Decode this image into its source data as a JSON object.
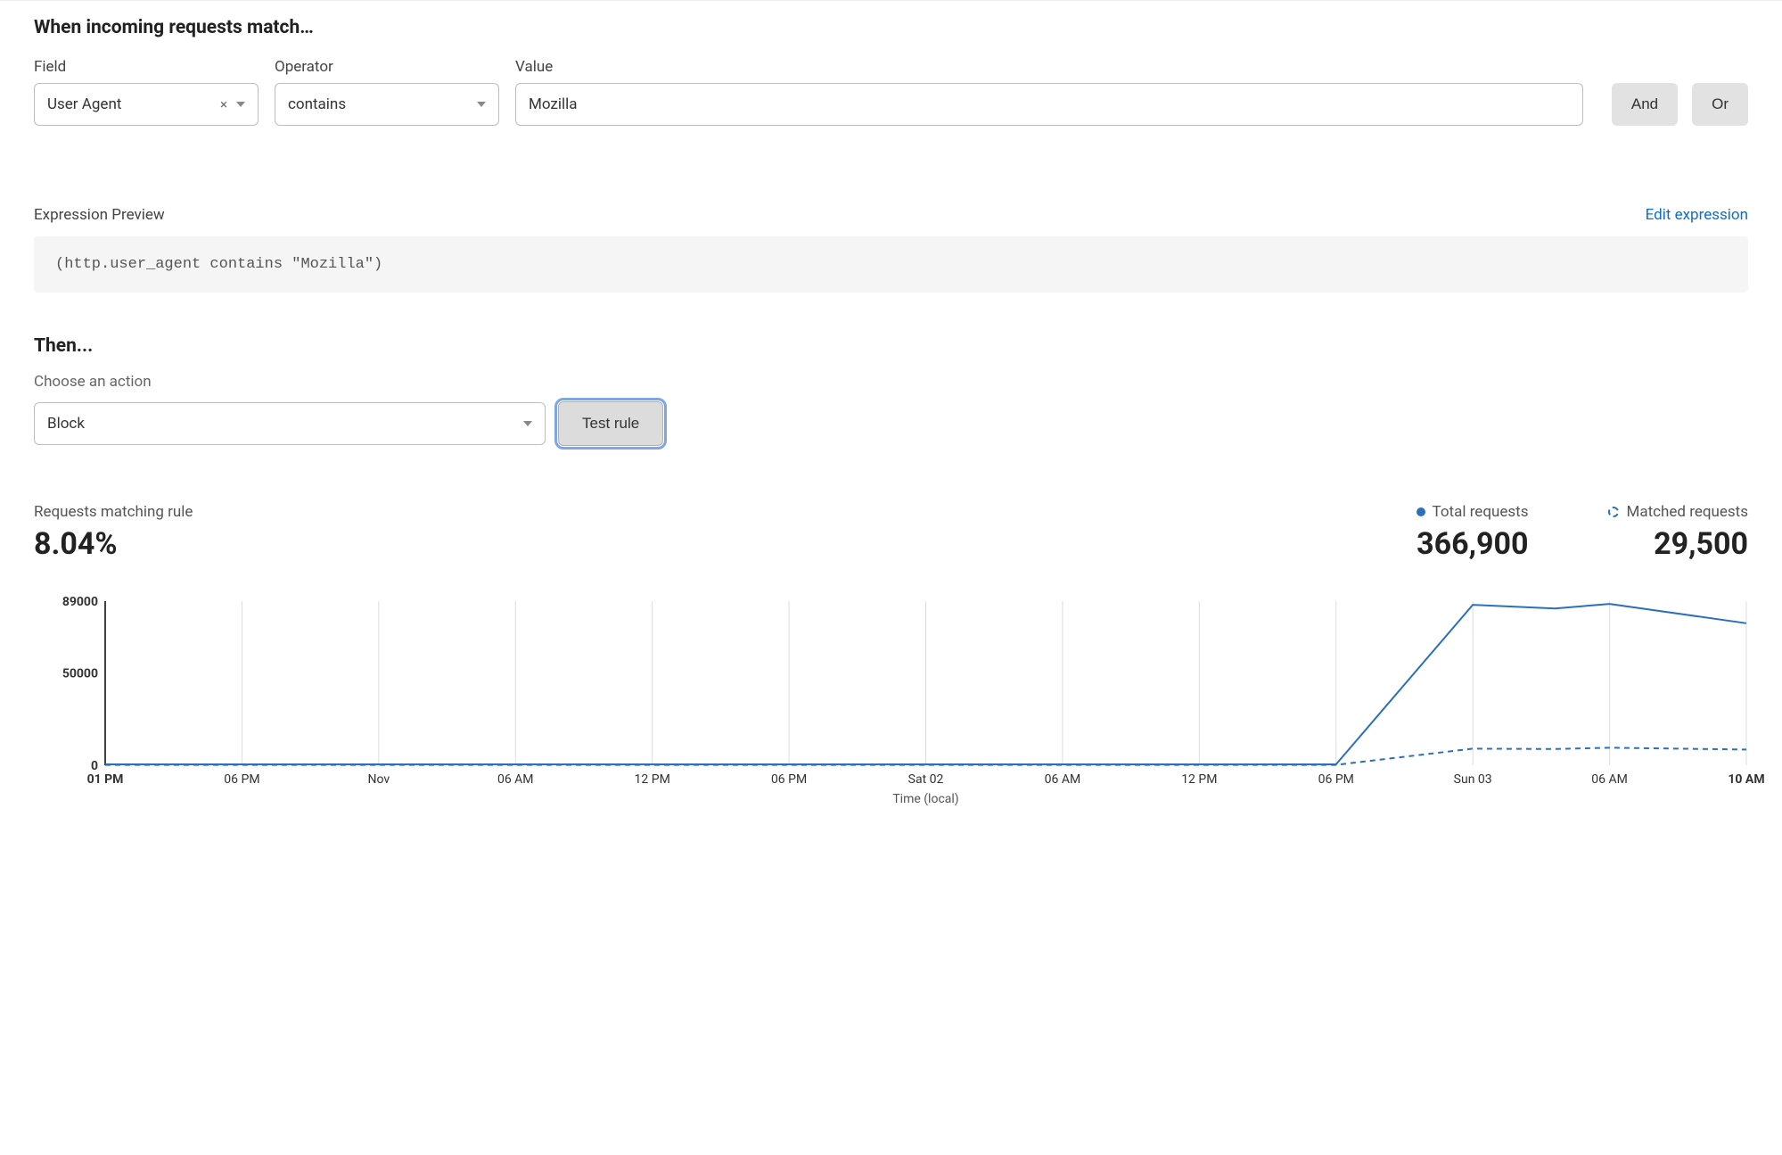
{
  "match_section": {
    "title": "When incoming requests match…",
    "field_label": "Field",
    "operator_label": "Operator",
    "value_label": "Value",
    "field_value": "User Agent",
    "operator_value": "contains",
    "value_value": "Mozilla",
    "and_label": "And",
    "or_label": "Or"
  },
  "preview": {
    "title": "Expression Preview",
    "edit_label": "Edit expression",
    "expression": "(http.user_agent contains \"Mozilla\")"
  },
  "then": {
    "title": "Then...",
    "action_label": "Choose an action",
    "action_value": "Block",
    "test_label": "Test rule"
  },
  "stats": {
    "matching_label": "Requests matching rule",
    "matching_value": "8.04%",
    "total_label": "Total requests",
    "total_value": "366,900",
    "matched_label": "Matched requests",
    "matched_value": "29,500"
  },
  "chart": {
    "type": "line",
    "xlabel": "Time (local)",
    "ylim": [
      0,
      89000
    ],
    "yticks": [
      0,
      50000,
      89000
    ],
    "ytick_labels": [
      "0",
      "50000",
      "89000"
    ],
    "x_categories": [
      "01 PM",
      "06 PM",
      "Nov",
      "06 AM",
      "12 PM",
      "06 PM",
      "Sat 02",
      "06 AM",
      "12 PM",
      "06 PM",
      "Sun 03",
      "06 AM",
      "10 AM"
    ],
    "x_bold": [
      true,
      false,
      false,
      false,
      false,
      false,
      false,
      false,
      false,
      false,
      false,
      false,
      true
    ],
    "series": {
      "total": {
        "color": "#2c6fbb",
        "line_width": 2,
        "dash": "none",
        "values": [
          500,
          500,
          500,
          500,
          500,
          500,
          500,
          500,
          500,
          500,
          87000,
          85000,
          87500,
          77000
        ],
        "x_positions": [
          0,
          1,
          2,
          3,
          4,
          5,
          6,
          7,
          8,
          9,
          10,
          10.6,
          11,
          12
        ]
      },
      "matched": {
        "color": "#2c6fbb",
        "line_width": 2,
        "dash": "6,5",
        "values": [
          200,
          200,
          200,
          200,
          200,
          200,
          200,
          200,
          200,
          200,
          9000,
          8800,
          9500,
          8500
        ],
        "x_positions": [
          0,
          1,
          2,
          3,
          4,
          5,
          6,
          7,
          8,
          9,
          10,
          10.6,
          11,
          12
        ]
      }
    },
    "grid_color": "#dddddd",
    "axis_color": "#000000",
    "background_color": "#ffffff",
    "tick_fontsize": 14
  },
  "colors": {
    "accent": "#2c6fbb",
    "link": "#0a6ed1",
    "button_bg": "#e2e2e2",
    "focus_ring": "#7da6e8"
  }
}
